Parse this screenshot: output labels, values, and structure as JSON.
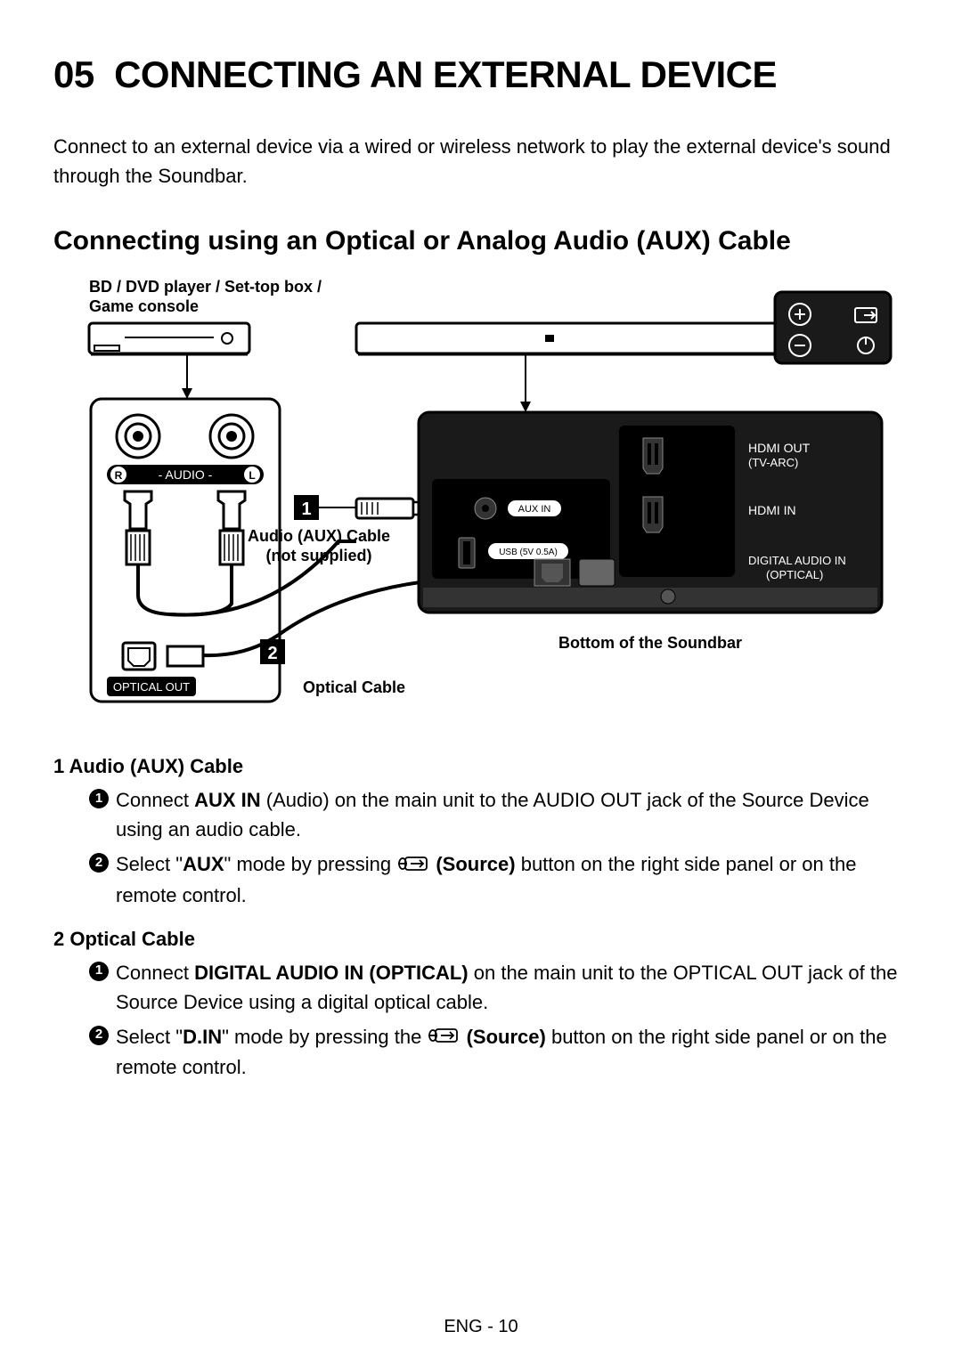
{
  "section_number": "05",
  "section_title": "CONNECTING AN EXTERNAL DEVICE",
  "intro": "Connect to an external device via a wired or wireless network to play the external device's sound through the Soundbar.",
  "subsection_title": "Connecting using an Optical or Analog Audio (AUX) Cable",
  "diagram": {
    "device_label_1": "BD / DVD player / Set-top box /",
    "device_label_2": "Game console",
    "audio_port_label": "- AUDIO -",
    "audio_port_r": "R",
    "audio_port_l": "L",
    "aux_cable_label_1": "Audio (AUX) Cable",
    "aux_cable_label_2": "(not supplied)",
    "optical_out": "OPTICAL OUT",
    "optical_cable": "Optical Cable",
    "num1": "1",
    "num2": "2",
    "aux_in": "AUX IN",
    "usb": "USB (5V 0.5A)",
    "hdmi_out_1": "HDMI OUT",
    "hdmi_out_2": "(TV-ARC)",
    "hdmi_in": "HDMI IN",
    "digital_in_1": "DIGITAL AUDIO IN",
    "digital_in_2": "(OPTICAL)",
    "bottom_label": "Bottom of the Soundbar",
    "colors": {
      "black": "#000000",
      "dark": "#1a1a1a",
      "white": "#ffffff",
      "gray": "#888888"
    }
  },
  "instructions": [
    {
      "num": "1",
      "title": "Audio (AUX) Cable",
      "steps": [
        {
          "n": "1",
          "parts": [
            "Connect ",
            {
              "b": "AUX IN"
            },
            " (Audio) on the main unit to the AUDIO OUT jack of the Source Device using an audio cable."
          ]
        },
        {
          "n": "2",
          "parts": [
            "Select \"",
            {
              "b": "AUX"
            },
            "\" mode by pressing ",
            {
              "icon": "source"
            },
            " ",
            {
              "b": "(Source)"
            },
            " button on the right side panel or on the remote control."
          ]
        }
      ]
    },
    {
      "num": "2",
      "title": "Optical Cable",
      "steps": [
        {
          "n": "1",
          "parts": [
            "Connect ",
            {
              "b": "DIGITAL AUDIO IN (OPTICAL)"
            },
            " on the main unit to the OPTICAL OUT jack of the Source Device using a digital optical cable."
          ]
        },
        {
          "n": "2",
          "parts": [
            "Select \"",
            {
              "b": "D.IN"
            },
            "\" mode by pressing the ",
            {
              "icon": "source"
            },
            " ",
            {
              "b": "(Source)"
            },
            " button on the right side panel or on the remote control."
          ]
        }
      ]
    }
  ],
  "footer": "ENG - 10"
}
